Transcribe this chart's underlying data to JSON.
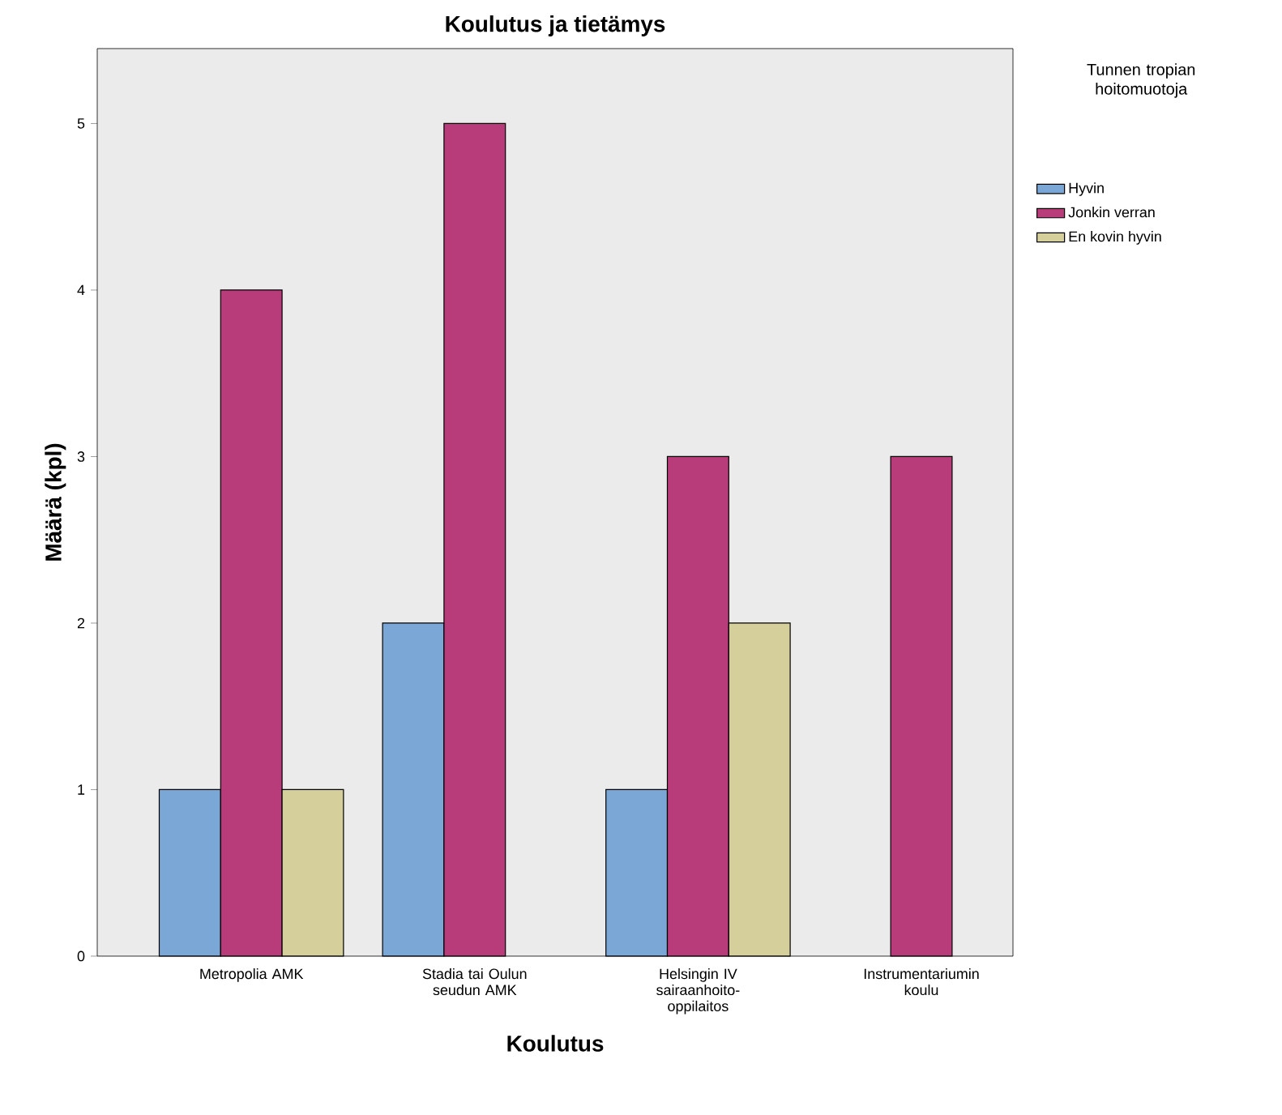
{
  "chart_data": {
    "type": "bar",
    "title": "Koulutus ja tietämys",
    "xlabel": "Koulutus",
    "ylabel": "Määrä (kpl)",
    "legend_title": "Tunnen tropian hoitomuotoja",
    "categories": [
      "Metropolia AMK",
      "Stadia tai Oulun seudun AMK",
      "Helsingin IV sairaanhoito-oppilaitos",
      "Instrumentariumin koulu"
    ],
    "series": [
      {
        "name": "Hyvin",
        "color": "#7ba7d7",
        "values": [
          1,
          2,
          1,
          null
        ]
      },
      {
        "name": "Jonkin verran",
        "color": "#b93c7a",
        "values": [
          4,
          5,
          3,
          3
        ]
      },
      {
        "name": "En kovin hyvin",
        "color": "#d5cf9b",
        "values": [
          1,
          null,
          2,
          null
        ]
      }
    ],
    "ylim": [
      0,
      5.45
    ],
    "yticks": [
      0,
      1,
      2,
      3,
      4,
      5
    ],
    "grid": false,
    "legend": "right"
  }
}
